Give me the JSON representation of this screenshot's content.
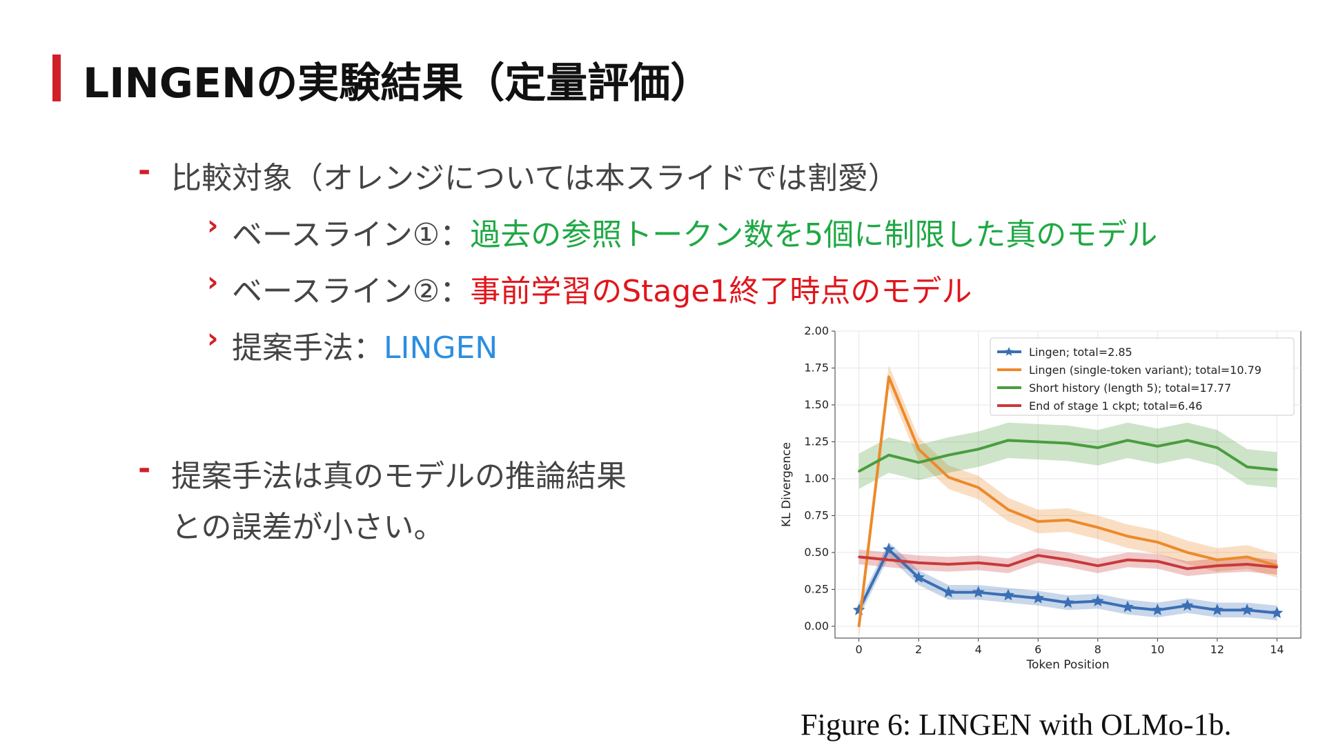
{
  "title": "LINGENの実験結果（定量評価）",
  "bullets": {
    "b1_dash": "-",
    "b1": "比較対象（オレンジについては本スライドでは割愛）",
    "b2_label": "ベースライン①：",
    "b2_value": "過去の参照トークン数を5個に制限した真のモデル",
    "b3_label": "ベースライン②：",
    "b3_value": "事前学習のStage1終了時点のモデル",
    "b4_label": "提案手法：",
    "b4_value": "LINGEN",
    "chevron": "›",
    "b5_dash": "-",
    "b5_line1": "提案手法は真のモデルの推論結果",
    "b5_line2": "との誤差が小さい。"
  },
  "caption": "Figure 6: LINGEN with OLMo-1b.",
  "colors": {
    "accent": "#d0202a",
    "green_text": "#1fa844",
    "red_text": "#e0161c",
    "blue_text": "#2b8ee0"
  },
  "chart_data": {
    "type": "line",
    "xlabel": "Token Position",
    "ylabel": "KL Divergence",
    "xlim": [
      -0.8,
      14.8
    ],
    "ylim": [
      -0.08,
      2.0
    ],
    "xticks": [
      0,
      2,
      4,
      6,
      8,
      10,
      12,
      14
    ],
    "yticks": [
      "0.00",
      "0.25",
      "0.50",
      "0.75",
      "1.00",
      "1.25",
      "1.50",
      "1.75",
      "2.00"
    ],
    "grid": true,
    "legend_position": "top-right",
    "x": [
      0,
      1,
      2,
      3,
      4,
      5,
      6,
      7,
      8,
      9,
      10,
      11,
      12,
      13,
      14
    ],
    "series": [
      {
        "name": "Lingen; total=2.85",
        "color": "#3a6fb5",
        "marker": "star",
        "values": [
          0.11,
          0.52,
          0.33,
          0.23,
          0.23,
          0.21,
          0.19,
          0.16,
          0.17,
          0.13,
          0.11,
          0.14,
          0.11,
          0.11,
          0.09
        ],
        "band": 0.05
      },
      {
        "name": "Lingen (single-token variant); total=10.79",
        "color": "#ec8a2b",
        "marker": "none",
        "values": [
          0.0,
          1.69,
          1.2,
          1.01,
          0.94,
          0.79,
          0.71,
          0.72,
          0.67,
          0.61,
          0.57,
          0.5,
          0.45,
          0.47,
          0.41
        ],
        "band": 0.08
      },
      {
        "name": "Short history (length 5); total=17.77",
        "color": "#4a9d3e",
        "marker": "none",
        "values": [
          1.05,
          1.16,
          1.11,
          1.16,
          1.2,
          1.26,
          1.25,
          1.24,
          1.21,
          1.26,
          1.22,
          1.26,
          1.21,
          1.08,
          1.06
        ],
        "band": 0.12
      },
      {
        "name": "End of stage 1 ckpt; total=6.46",
        "color": "#c9393a",
        "marker": "none",
        "values": [
          0.47,
          0.45,
          0.43,
          0.42,
          0.43,
          0.41,
          0.48,
          0.45,
          0.41,
          0.45,
          0.44,
          0.39,
          0.41,
          0.42,
          0.4
        ],
        "band": 0.05
      }
    ]
  }
}
